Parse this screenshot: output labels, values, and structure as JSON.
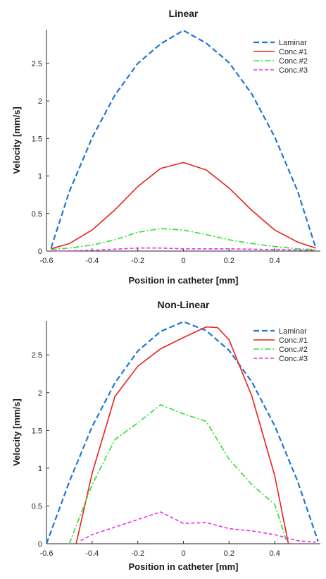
{
  "chart_data": [
    {
      "type": "line",
      "title": "Linear",
      "xlabel": "Position in catheter [mm]",
      "ylabel": "Velocity [mm/s]",
      "xlim": [
        -0.6,
        0.6
      ],
      "ylim": [
        0,
        2.95
      ],
      "xticks": [
        -0.6,
        -0.4,
        -0.2,
        0,
        0.2,
        0.4
      ],
      "xtick_labels": [
        "-0.6",
        "-0.4",
        "-0.2",
        "0",
        "0.2",
        "0.4"
      ],
      "yticks": [
        0,
        0.5,
        1,
        1.5,
        2,
        2.5
      ],
      "ytick_labels": [
        "0",
        "0.5",
        "1",
        "1.5",
        "2",
        "2.5"
      ],
      "legend": "top-right",
      "grid": false,
      "series": [
        {
          "name": "Laminar",
          "color": "#1f77d4",
          "dash": "dashed",
          "x": [
            -0.58,
            -0.5,
            -0.4,
            -0.3,
            -0.2,
            -0.1,
            0,
            0.1,
            0.2,
            0.3,
            0.4,
            0.5,
            0.58
          ],
          "y": [
            0.04,
            0.79,
            1.51,
            2.08,
            2.5,
            2.76,
            2.94,
            2.77,
            2.51,
            2.09,
            1.52,
            0.8,
            0.04
          ]
        },
        {
          "name": "Conc.#1",
          "color": "#e8201c",
          "dash": "solid",
          "x": [
            -0.58,
            -0.5,
            -0.4,
            -0.3,
            -0.2,
            -0.1,
            0,
            0.1,
            0.2,
            0.3,
            0.4,
            0.5,
            0.58
          ],
          "y": [
            0.03,
            0.1,
            0.28,
            0.55,
            0.86,
            1.1,
            1.18,
            1.08,
            0.84,
            0.54,
            0.28,
            0.12,
            0.04
          ]
        },
        {
          "name": "Conc.#2",
          "color": "#2ee02e",
          "dash": "dashdot",
          "x": [
            -0.58,
            -0.5,
            -0.4,
            -0.3,
            -0.2,
            -0.1,
            0,
            0.1,
            0.2,
            0.3,
            0.4,
            0.5,
            0.58
          ],
          "y": [
            0.02,
            0.04,
            0.08,
            0.15,
            0.25,
            0.3,
            0.28,
            0.22,
            0.15,
            0.1,
            0.06,
            0.03,
            0.02
          ]
        },
        {
          "name": "Conc.#3",
          "color": "#e632e6",
          "dash": "dashed",
          "x": [
            -0.58,
            -0.4,
            -0.2,
            -0.1,
            0,
            0.2,
            0.4,
            0.58
          ],
          "y": [
            0.0,
            0.01,
            0.04,
            0.04,
            0.03,
            0.03,
            0.02,
            0.01
          ]
        }
      ]
    },
    {
      "type": "line",
      "title": "Non-Linear",
      "xlabel": "Position in catheter [mm]",
      "ylabel": "Velocity [mm/s]",
      "xlim": [
        -0.6,
        0.6
      ],
      "ylim": [
        0,
        2.95
      ],
      "xticks": [
        -0.6,
        -0.4,
        -0.2,
        0,
        0.2,
        0.4
      ],
      "xtick_labels": [
        "-0.6",
        "-0.4",
        "-0.2",
        "0",
        "0.2",
        "0.4"
      ],
      "yticks": [
        0,
        0.5,
        1,
        1.5,
        2,
        2.5
      ],
      "ytick_labels": [
        "0",
        "0.5",
        "1",
        "1.5",
        "2",
        "2.5"
      ],
      "legend": "top-right",
      "grid": false,
      "series": [
        {
          "name": "Laminar",
          "color": "#1f77d4",
          "dash": "dashed",
          "x": [
            -0.6,
            -0.5,
            -0.4,
            -0.3,
            -0.2,
            -0.1,
            0,
            0.1,
            0.2,
            0.3,
            0.4,
            0.5,
            0.59
          ],
          "y": [
            0.0,
            0.82,
            1.55,
            2.13,
            2.55,
            2.81,
            2.94,
            2.82,
            2.56,
            2.14,
            1.56,
            0.83,
            0.03
          ]
        },
        {
          "name": "Conc.#1",
          "color": "#e8201c",
          "dash": "solid",
          "x": [
            -0.47,
            -0.4,
            -0.3,
            -0.2,
            -0.1,
            0,
            0.05,
            0.1,
            0.15,
            0.2,
            0.3,
            0.4,
            0.46
          ],
          "y": [
            0.0,
            0.93,
            1.95,
            2.35,
            2.58,
            2.73,
            2.8,
            2.87,
            2.86,
            2.7,
            1.95,
            0.9,
            0.0
          ]
        },
        {
          "name": "Conc.#2",
          "color": "#2ee02e",
          "dash": "dashdot",
          "x": [
            -0.5,
            -0.4,
            -0.3,
            -0.2,
            -0.1,
            0,
            0.1,
            0.2,
            0.3,
            0.4,
            0.45
          ],
          "y": [
            0.0,
            0.78,
            1.38,
            1.6,
            1.84,
            1.72,
            1.62,
            1.12,
            0.78,
            0.52,
            0.05
          ]
        },
        {
          "name": "Conc.#3",
          "color": "#e632e6",
          "dash": "dashed",
          "x": [
            -0.45,
            -0.4,
            -0.3,
            -0.2,
            -0.1,
            0,
            0.1,
            0.2,
            0.3,
            0.4,
            0.5,
            0.58
          ],
          "y": [
            0.04,
            0.12,
            0.22,
            0.32,
            0.42,
            0.27,
            0.28,
            0.2,
            0.17,
            0.12,
            0.04,
            0.02
          ]
        }
      ]
    }
  ]
}
